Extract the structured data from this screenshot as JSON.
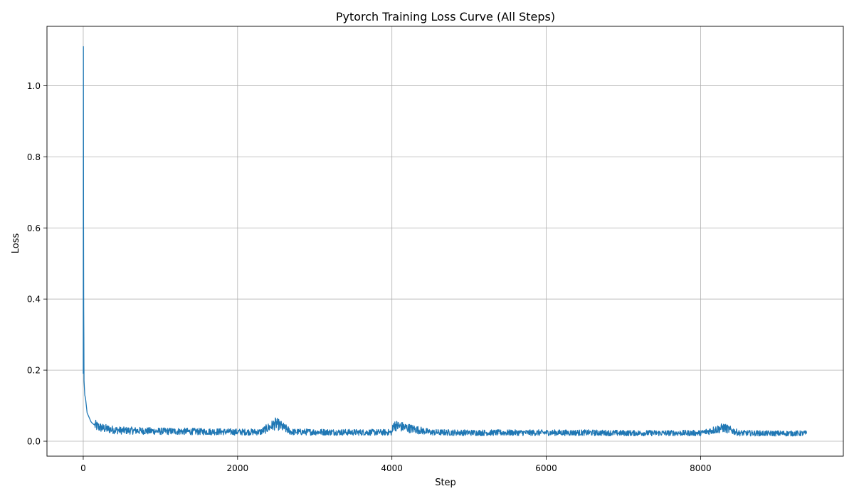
{
  "chart_data": {
    "type": "line",
    "title": "Pytorch Training Loss Curve (All Steps)",
    "xlabel": "Step",
    "ylabel": "Loss",
    "xlim": [
      -470,
      9850
    ],
    "ylim": [
      -0.042,
      1.167
    ],
    "xticks": [
      0,
      2000,
      4000,
      6000,
      8000
    ],
    "xtick_labels": [
      "0",
      "2000",
      "4000",
      "6000",
      "8000"
    ],
    "yticks": [
      0.0,
      0.2,
      0.4,
      0.6,
      0.8,
      1.0
    ],
    "ytick_labels": [
      "0.0",
      "0.2",
      "0.4",
      "0.6",
      "0.8",
      "1.0"
    ],
    "grid": true,
    "line_color": "#1f77b4",
    "series": [
      {
        "x": [
          0,
          2,
          4,
          6,
          8,
          10,
          15,
          20,
          30,
          40,
          50,
          60,
          80,
          100,
          120,
          150,
          200,
          250,
          300,
          400,
          500,
          600,
          800,
          1000,
          1200,
          1500,
          1700,
          2000,
          2300,
          2500,
          2700,
          3000,
          3500,
          4000,
          4020,
          4500,
          5000,
          5500,
          6000,
          6500,
          7000,
          7500,
          8000,
          8300,
          8500,
          8900,
          9200,
          9380
        ],
        "y": [
          0.19,
          1.11,
          0.6,
          0.37,
          0.29,
          0.17,
          0.15,
          0.13,
          0.12,
          0.1,
          0.08,
          0.075,
          0.065,
          0.055,
          0.05,
          0.045,
          0.04,
          0.037,
          0.035,
          0.032,
          0.03,
          0.03,
          0.029,
          0.028,
          0.028,
          0.027,
          0.027,
          0.026,
          0.026,
          0.05,
          0.026,
          0.026,
          0.025,
          0.025,
          0.045,
          0.025,
          0.024,
          0.024,
          0.024,
          0.024,
          0.023,
          0.023,
          0.023,
          0.038,
          0.023,
          0.022,
          0.022,
          0.022
        ]
      }
    ]
  }
}
